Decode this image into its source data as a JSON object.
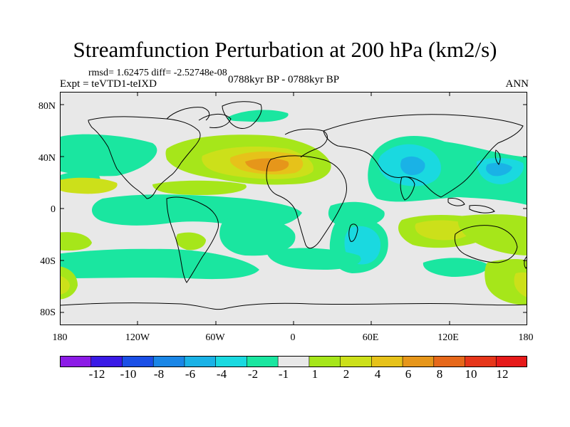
{
  "figure": {
    "title": "Streamfunction Perturbation at 200 hPa (km2/s)",
    "stats": "rmsd= 1.62475 diff= -2.52748e-08",
    "experiment": "Expt = teVTD1-teIXD",
    "period": "0788kyr BP - 0788kyr BP",
    "season": "ANN"
  },
  "map": {
    "lat_ticks": [
      "80N",
      "40N",
      "0",
      "40S",
      "80S"
    ],
    "lon_ticks": [
      "180",
      "120W",
      "60W",
      "0",
      "60E",
      "120E",
      "180"
    ]
  },
  "colorbar": {
    "labels": [
      "-12",
      "-10",
      "-8",
      "-6",
      "-4",
      "-2",
      "-1",
      "1",
      "2",
      "4",
      "6",
      "8",
      "10",
      "12"
    ],
    "colors": [
      "#8c1be6",
      "#3a1ae6",
      "#1a4fe6",
      "#1a86e6",
      "#1ab2e6",
      "#1ad9e0",
      "#1ae6a0",
      "#e8e8e8",
      "#a6e61a",
      "#cce01a",
      "#e6c21a",
      "#e6961a",
      "#e6681a",
      "#e6361a",
      "#e61a1a"
    ]
  }
}
